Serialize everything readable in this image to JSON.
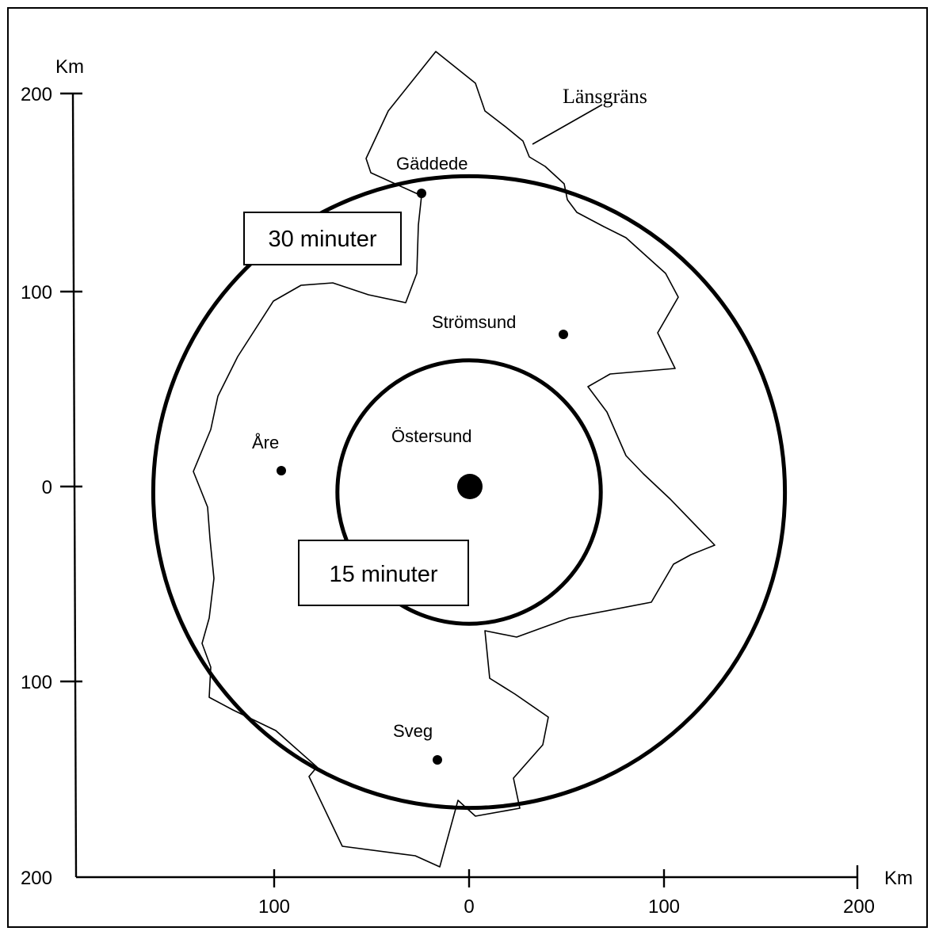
{
  "axes": {
    "y_unit": "Km",
    "x_unit": "Km",
    "y_ticks": [
      {
        "label": "200",
        "value": 200
      },
      {
        "label": "100",
        "value": 100
      },
      {
        "label": "0",
        "value": 0
      },
      {
        "label": "100",
        "value": -100
      },
      {
        "label": "200",
        "value": -200
      }
    ],
    "x_ticks": [
      {
        "label": "100",
        "value": -100
      },
      {
        "label": "0",
        "value": 0
      },
      {
        "label": "100",
        "value": 100
      },
      {
        "label": "200",
        "value": 200
      }
    ]
  },
  "circles": [
    {
      "label": "30 minuter",
      "center_km": [
        0,
        0
      ],
      "radius_km": 160
    },
    {
      "label": "15 minuter",
      "center_km": [
        0,
        0
      ],
      "radius_km": 70
    }
  ],
  "border_label": "Länsgräns",
  "places": [
    {
      "name": "Gäddede",
      "km": [
        -24,
        150
      ]
    },
    {
      "name": "Strömsund",
      "km": [
        49,
        77
      ]
    },
    {
      "name": "Åre",
      "km": [
        -96,
        8
      ]
    },
    {
      "name": "Östersund",
      "km": [
        0,
        0
      ]
    },
    {
      "name": "Sveg",
      "km": [
        -16,
        -140
      ]
    }
  ]
}
